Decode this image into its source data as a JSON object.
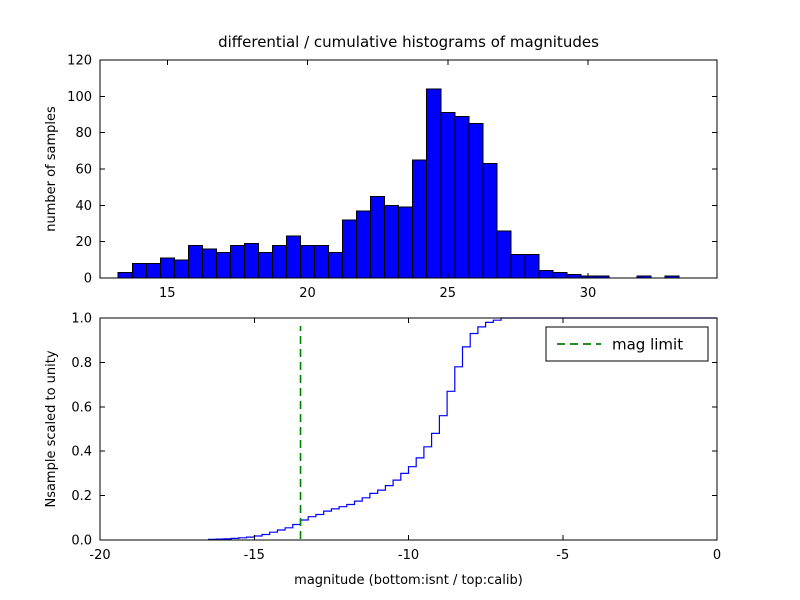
{
  "title": "differential / cumulative histograms of magnitudes",
  "chart_data": [
    {
      "type": "bar",
      "name": "differential-histogram",
      "ylabel": "number of samples",
      "xlim": [
        12.6,
        34.6
      ],
      "ylim": [
        0,
        120
      ],
      "xticks": {
        "values": [
          15,
          20,
          25,
          30
        ],
        "labels": [
          "15",
          "20",
          "25",
          "30"
        ]
      },
      "yticks": {
        "values": [
          0,
          20,
          40,
          60,
          80,
          100,
          120
        ],
        "labels": [
          "0",
          "20",
          "40",
          "60",
          "80",
          "100",
          "120"
        ]
      },
      "bar_color": "#0000ff",
      "bar_edge_color": "#000000",
      "bin_start": 13.25,
      "bin_width": 0.5,
      "values": [
        3,
        8,
        8,
        11,
        10,
        18,
        16,
        14,
        18,
        19,
        14,
        18,
        23,
        18,
        18,
        14,
        32,
        37,
        45,
        40,
        39,
        65,
        104,
        91,
        89,
        85,
        63,
        26,
        13,
        13,
        4,
        3,
        2,
        1,
        1,
        0,
        0,
        1,
        0,
        1
      ]
    },
    {
      "type": "line",
      "name": "cumulative-histogram",
      "step": true,
      "ylabel": "Nsample scaled to unity",
      "xlabel": "magnitude (bottom:isnt / top:calib)",
      "xlim": [
        -20,
        0
      ],
      "ylim": [
        0,
        1
      ],
      "xticks": {
        "values": [
          -20,
          -15,
          -10,
          -5,
          0
        ],
        "labels": [
          "-20",
          "-15",
          "-10",
          "-5",
          "0"
        ]
      },
      "yticks": {
        "values": [
          0,
          0.2,
          0.4,
          0.6,
          0.8,
          1
        ],
        "labels": [
          "0.0",
          "0.2",
          "0.4",
          "0.6",
          "0.8",
          "1.0"
        ]
      },
      "line_color": "#0000ff",
      "x": [
        -16.5,
        -16.25,
        -16.0,
        -15.75,
        -15.5,
        -15.25,
        -15.0,
        -14.75,
        -14.5,
        -14.25,
        -14.0,
        -13.75,
        -13.5,
        -13.25,
        -13.0,
        -12.75,
        -12.5,
        -12.25,
        -12.0,
        -11.75,
        -11.5,
        -11.25,
        -11.0,
        -10.75,
        -10.5,
        -10.25,
        -10.0,
        -9.75,
        -9.5,
        -9.25,
        -9.0,
        -8.75,
        -8.5,
        -8.25,
        -8.0,
        -7.75,
        -7.5,
        -7.25,
        -7.0,
        0
      ],
      "y": [
        0.003,
        0.004,
        0.005,
        0.007,
        0.01,
        0.013,
        0.018,
        0.025,
        0.035,
        0.045,
        0.055,
        0.07,
        0.09,
        0.105,
        0.115,
        0.13,
        0.14,
        0.15,
        0.16,
        0.175,
        0.19,
        0.21,
        0.225,
        0.245,
        0.27,
        0.3,
        0.33,
        0.37,
        0.42,
        0.48,
        0.56,
        0.67,
        0.78,
        0.87,
        0.93,
        0.96,
        0.98,
        0.99,
        1.0,
        1.0
      ],
      "mag_limit": {
        "x": -13.5,
        "color": "#008000",
        "label": "mag limit",
        "linestyle": "dashed"
      }
    }
  ]
}
